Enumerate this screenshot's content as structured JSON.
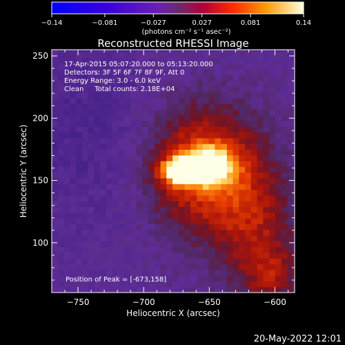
{
  "chart_data": {
    "type": "heatmap",
    "title": "Reconstructed RHESSI Image",
    "xlabel": "Heliocentric X (arcsec)",
    "ylabel": "Heliocentric Y (arcsec)",
    "xlim": [
      -770,
      -585
    ],
    "ylim": [
      60,
      255
    ],
    "xticks": [
      -750,
      -700,
      -650,
      -600
    ],
    "yticks": [
      100,
      150,
      200,
      250
    ],
    "colorbar": {
      "range": [
        -0.14,
        0.14
      ],
      "ticks": [
        "-0.14",
        "-0.081",
        "-0.027",
        "0.027",
        "0.081",
        "0.14"
      ],
      "unit_label": "(photons cm⁻² s⁻¹ asec⁻²)"
    },
    "peak": [
      -673,
      158
    ],
    "info_lines": [
      "17-Apr-2015 05:07:20.000 to 05:13:20.000",
      "Detectors: 3F 5F 6F 7F 8F 9F, Att 0",
      "Energy Range: 3.0 - 6.0 keV",
      "Clean     Total counts: 2.18E+04"
    ],
    "peak_text": "Position of Peak = [-673,158]"
  },
  "footer": {
    "datestamp": "20-May-2022 12:01"
  }
}
